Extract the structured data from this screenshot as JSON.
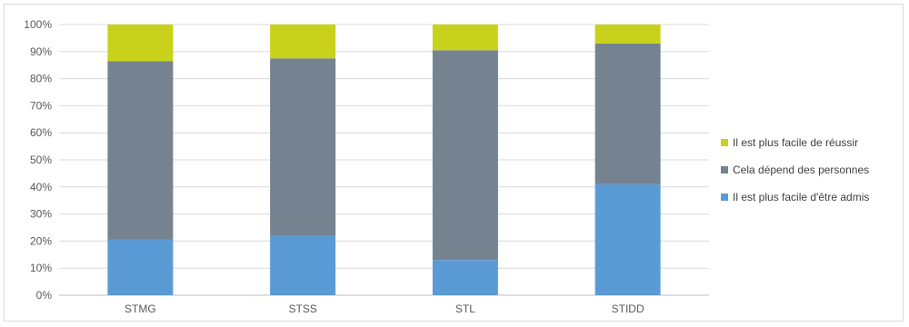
{
  "chart_data": {
    "type": "bar",
    "stacked": true,
    "percent": true,
    "categories": [
      "STMG",
      "STSS",
      "STL",
      "STIDD"
    ],
    "series": [
      {
        "name": "Il est plus facile d'être admis",
        "color": "#5b9bd5",
        "values": [
          20.5,
          22,
          13,
          41
        ]
      },
      {
        "name": "Cela dépend des personnes",
        "color": "#758390",
        "values": [
          66,
          65.5,
          77.5,
          52
        ]
      },
      {
        "name": "Il est plus facile de réussir",
        "color": "#c9d21a",
        "values": [
          13.5,
          12.5,
          9.5,
          7
        ]
      }
    ],
    "y_ticks": [
      "0%",
      "10%",
      "20%",
      "30%",
      "40%",
      "50%",
      "60%",
      "70%",
      "80%",
      "90%",
      "100%"
    ],
    "ylim": [
      0,
      100
    ],
    "grid": true,
    "legend_position": "right"
  }
}
